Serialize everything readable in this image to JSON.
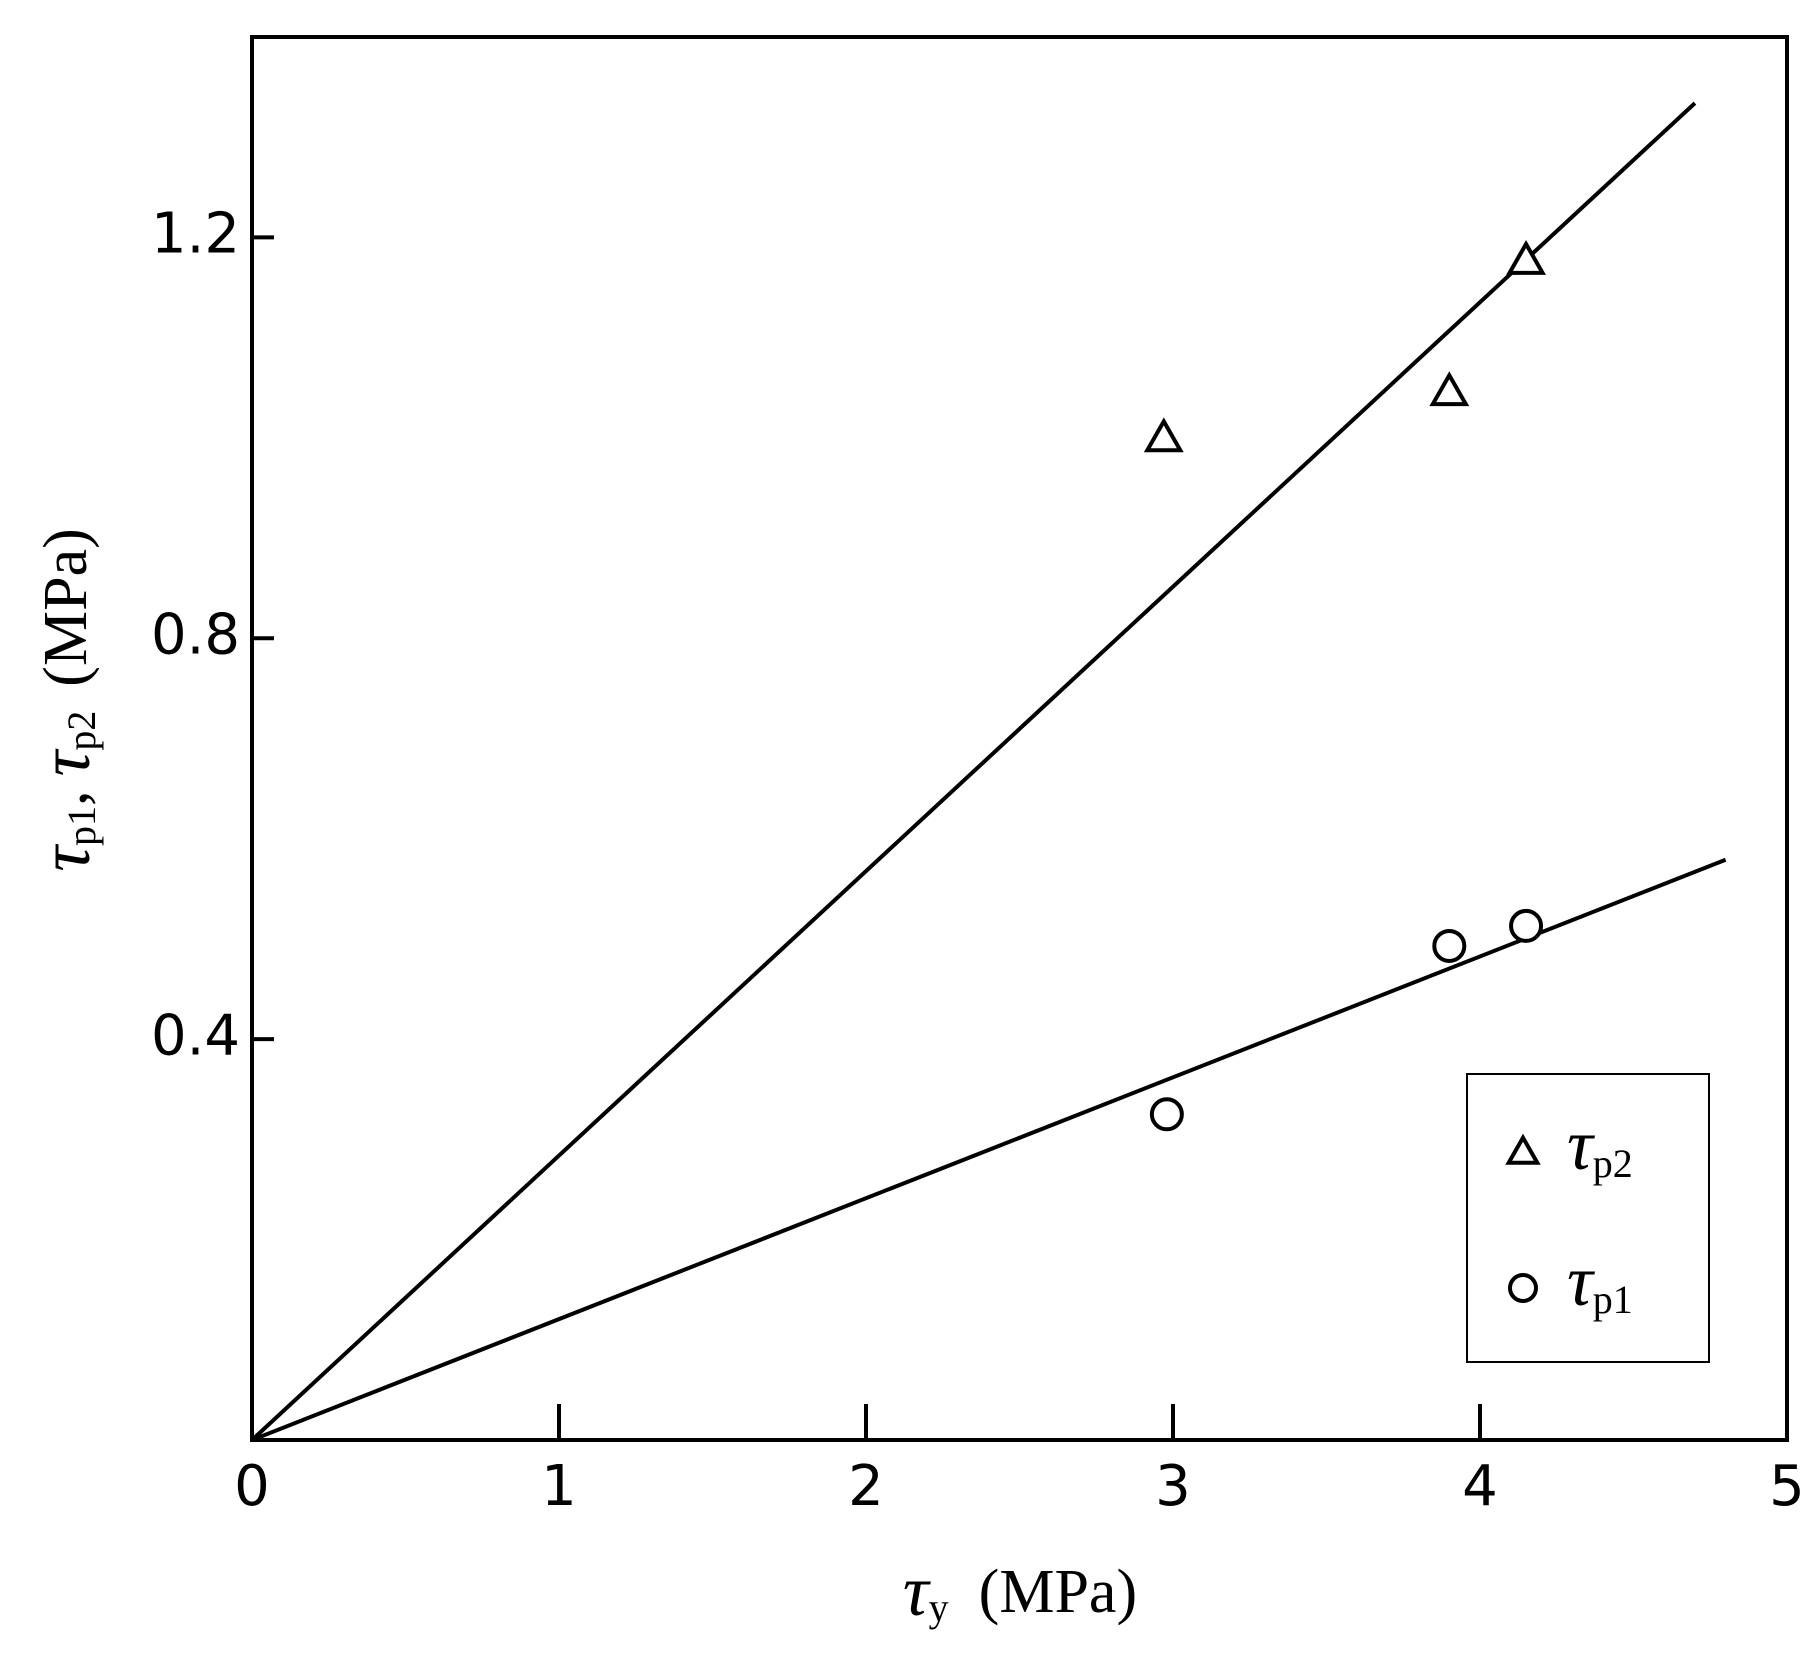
{
  "chart_data": {
    "type": "scatter",
    "x_label": {
      "symbol": "τ",
      "subscript": "y",
      "unit": "(MPa)"
    },
    "y_label": {
      "first": {
        "symbol": "τ",
        "subscript": "p1"
      },
      "separator": ",",
      "second": {
        "symbol": "τ",
        "subscript": "p2"
      },
      "unit": "(MPa)"
    },
    "series": [
      {
        "name": "τp2",
        "marker": "triangle",
        "color": "#000000",
        "x": [
          2.97,
          3.9,
          4.15
        ],
        "values": [
          1.0,
          1.046,
          1.177
        ]
      },
      {
        "name": "τp1",
        "marker": "circle",
        "color": "#000000",
        "x": [
          2.98,
          3.9,
          4.15
        ],
        "values": [
          0.325,
          0.493,
          0.513
        ]
      }
    ],
    "fit_lines": [
      {
        "x": [
          0,
          4.7
        ],
        "values": [
          0,
          1.334
        ]
      },
      {
        "x": [
          0,
          4.8
        ],
        "values": [
          0,
          0.579
        ]
      }
    ],
    "xlim": [
      0,
      5
    ],
    "xticks": [
      0,
      1,
      2,
      3,
      4,
      5
    ],
    "ylim": [
      0,
      1.4
    ],
    "yticks": [
      0.4,
      0.8,
      1.2
    ],
    "grid": false,
    "legend": "lower right"
  }
}
